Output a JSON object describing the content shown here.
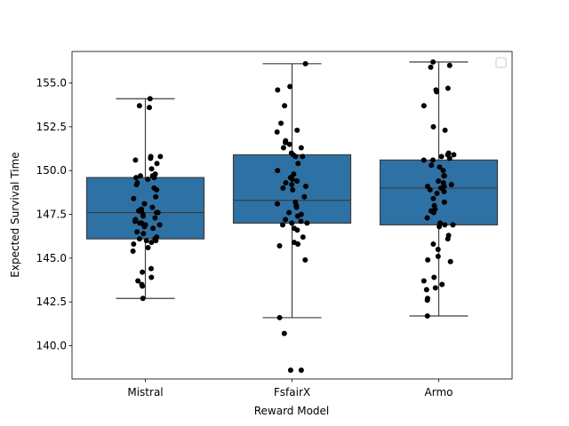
{
  "chart_data": {
    "type": "box",
    "xlabel": "Reward Model",
    "ylabel": "Expected Survival Time",
    "categories": [
      "Mistral",
      "FsfairX",
      "Armo"
    ],
    "ylim": [
      138.1,
      156.8
    ],
    "yticks": [
      140.0,
      142.5,
      145.0,
      147.5,
      150.0,
      152.5,
      155.0
    ],
    "ytick_labels": [
      "140.0",
      "142.5",
      "145.0",
      "147.5",
      "150.0",
      "152.5",
      "155.0"
    ],
    "legend": "top-right (empty)",
    "grid": false,
    "box_color": "#2e71a5",
    "point_color": "#000000",
    "boxes": [
      {
        "category": "Mistral",
        "whisker_low": 142.7,
        "q1": 146.1,
        "median": 147.6,
        "q3": 149.6,
        "whisker_high": 154.1
      },
      {
        "category": "FsfairX",
        "whisker_low": 141.6,
        "q1": 147.0,
        "median": 148.3,
        "q3": 150.9,
        "whisker_high": 156.1
      },
      {
        "category": "Armo",
        "whisker_low": 141.7,
        "q1": 146.9,
        "median": 149.0,
        "q3": 150.6,
        "whisker_high": 156.2
      }
    ],
    "points": [
      {
        "category": "Mistral",
        "values": [
          154.1,
          153.7,
          153.6,
          150.8,
          150.8,
          150.7,
          150.6,
          150.4,
          150.1,
          149.8,
          149.7,
          149.7,
          149.6,
          149.6,
          149.5,
          149.3,
          149.2,
          149.0,
          148.9,
          148.5,
          148.4,
          148.1,
          147.9,
          147.8,
          147.7,
          147.7,
          147.6,
          147.6,
          147.5,
          147.4,
          147.3,
          147.2,
          147.1,
          147.0,
          147.0,
          146.9,
          146.9,
          146.8,
          146.7,
          146.5,
          146.4,
          146.2,
          146.1,
          146.1,
          146.0,
          146.0,
          145.9,
          145.8,
          145.6,
          145.4,
          144.4,
          144.2,
          143.9,
          143.7,
          143.5,
          143.4,
          142.7
        ]
      },
      {
        "category": "FsfairX",
        "values": [
          156.1,
          154.8,
          154.6,
          153.7,
          152.7,
          152.3,
          152.2,
          151.7,
          151.6,
          151.5,
          151.3,
          151.3,
          151.0,
          150.9,
          150.8,
          150.8,
          150.4,
          150.0,
          149.8,
          149.6,
          149.5,
          149.4,
          149.3,
          149.2,
          149.1,
          149.0,
          148.9,
          148.5,
          148.2,
          148.1,
          148.0,
          147.9,
          147.6,
          147.5,
          147.4,
          147.2,
          147.1,
          147.0,
          147.0,
          146.9,
          146.7,
          146.6,
          146.2,
          145.9,
          145.8,
          145.7,
          144.9,
          141.6,
          140.7,
          138.6,
          138.6
        ]
      },
      {
        "category": "Armo",
        "values": [
          156.2,
          156.0,
          155.9,
          154.7,
          154.6,
          154.5,
          153.7,
          152.5,
          152.3,
          151.0,
          150.9,
          150.9,
          150.8,
          150.7,
          150.6,
          150.6,
          150.3,
          150.2,
          150.0,
          149.7,
          149.7,
          149.4,
          149.3,
          149.2,
          149.1,
          149.1,
          149.0,
          148.9,
          148.8,
          148.7,
          148.4,
          148.2,
          148.0,
          147.8,
          147.7,
          147.6,
          147.3,
          147.0,
          146.9,
          146.9,
          146.8,
          146.3,
          146.1,
          145.8,
          145.5,
          145.1,
          144.9,
          144.8,
          143.9,
          143.7,
          143.5,
          143.3,
          143.2,
          142.7,
          142.6,
          141.7
        ]
      }
    ]
  }
}
